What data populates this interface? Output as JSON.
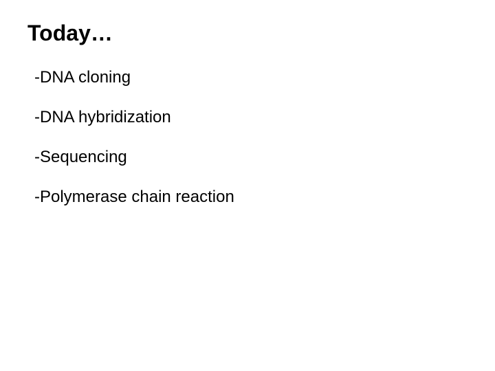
{
  "slide": {
    "title": "Today…",
    "title_fontsize": 32,
    "title_fontweight": "bold",
    "title_color": "#000000",
    "items": [
      "-DNA cloning",
      "-DNA hybridization",
      "-Sequencing",
      "-Polymerase chain reaction"
    ],
    "item_fontsize": 24,
    "item_color": "#000000",
    "background_color": "#ffffff",
    "font_family": "Verdana, Tahoma, sans-serif",
    "item_spacing": 30
  }
}
